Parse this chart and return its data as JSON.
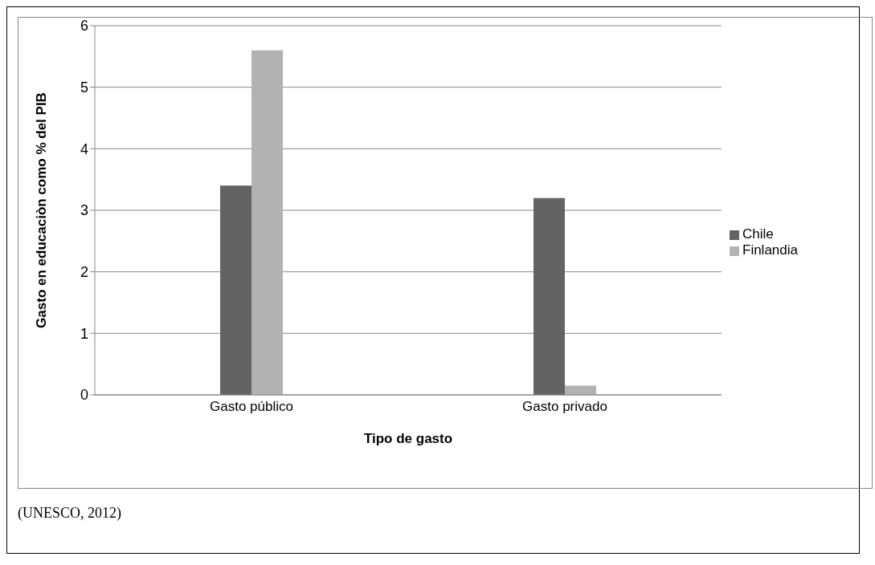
{
  "chart_data": {
    "type": "bar",
    "xlabel": "Tipo de gasto",
    "ylabel": "Gasto en educaciòn como % del PIB",
    "categories": [
      "Gasto público",
      "Gasto privado"
    ],
    "series": [
      {
        "name": "Chile",
        "color": "#636363",
        "values": [
          3.4,
          3.2
        ]
      },
      {
        "name": "Finlandia",
        "color": "#b2b2b2",
        "values": [
          5.6,
          0.15
        ]
      }
    ],
    "ylim": [
      0,
      6
    ],
    "yticks": [
      0,
      1,
      2,
      3,
      4,
      5,
      6
    ],
    "grid": "y",
    "legend": "right",
    "annotations": [
      "(UNESCO, 2012)"
    ]
  }
}
